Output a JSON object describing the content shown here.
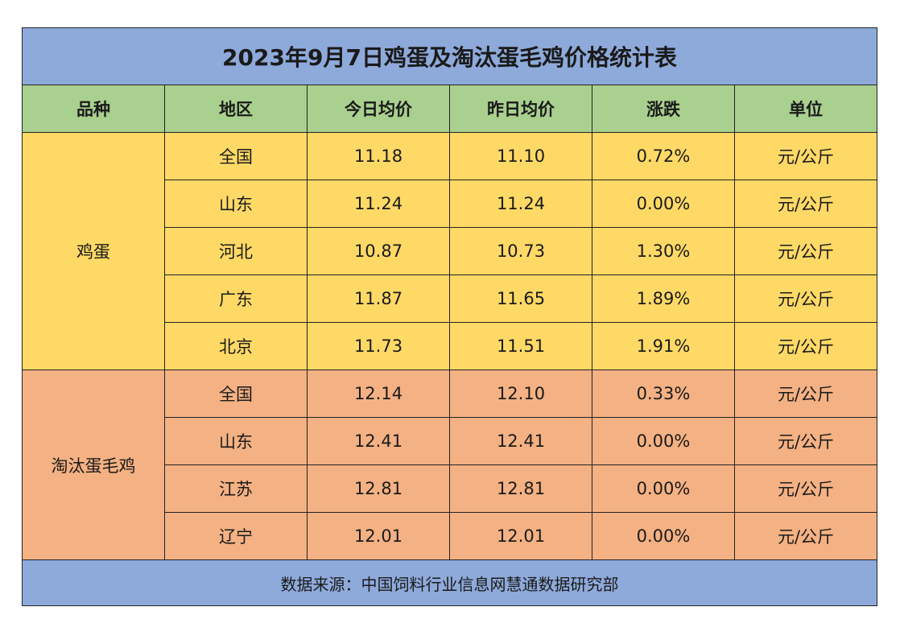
{
  "table": {
    "title": "2023年9月7日鸡蛋及淘汰蛋毛鸡价格统计表",
    "header": [
      "品种",
      "地区",
      "今日均价",
      "昨日均价",
      "涨跌",
      "单位"
    ],
    "groups": [
      {
        "name": "鸡蛋",
        "rows": [
          [
            "全国",
            "11.18",
            "11.10",
            "0.72%",
            "元/公斤"
          ],
          [
            "山东",
            "11.24",
            "11.24",
            "0.00%",
            "元/公斤"
          ],
          [
            "河北",
            "10.87",
            "10.73",
            "1.30%",
            "元/公斤"
          ],
          [
            "广东",
            "11.87",
            "11.65",
            "1.89%",
            "元/公斤"
          ],
          [
            "北京",
            "11.73",
            "11.51",
            "1.91%",
            "元/公斤"
          ]
        ]
      },
      {
        "name": "淘汰蛋毛鸡",
        "rows": [
          [
            "全国",
            "12.14",
            "12.10",
            "0.33%",
            "元/公斤"
          ],
          [
            "山东",
            "12.41",
            "12.41",
            "0.00%",
            "元/公斤"
          ],
          [
            "江苏",
            "12.81",
            "12.81",
            "0.00%",
            "元/公斤"
          ],
          [
            "辽宁",
            "12.01",
            "12.01",
            "0.00%",
            "元/公斤"
          ]
        ]
      }
    ],
    "footer": "数据来源：中国饲料行业信息网慧通数据研究部"
  }
}
